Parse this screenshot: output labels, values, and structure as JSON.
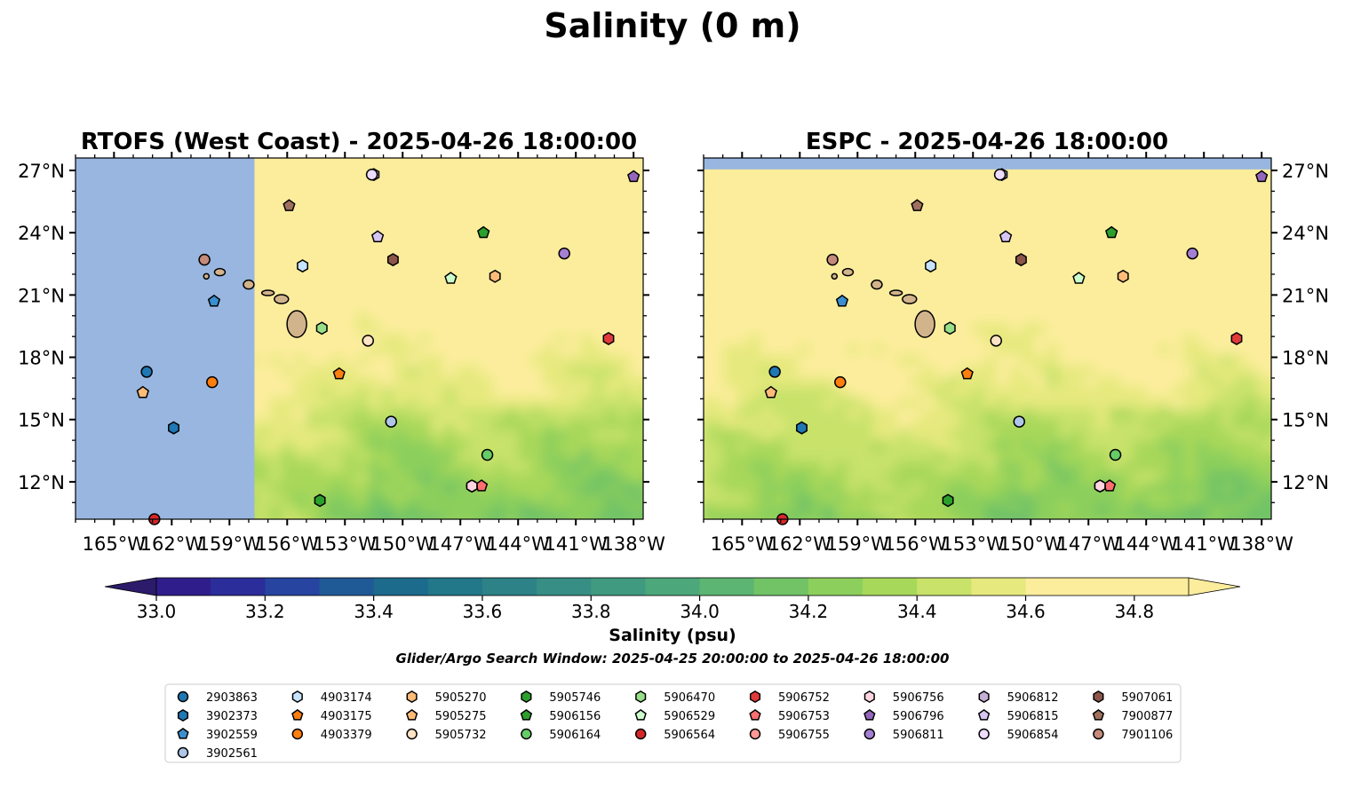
{
  "figure": {
    "title": "Salinity (0 m)",
    "search_window": "Glider/Argo Search Window: 2025-04-25 20:00:00 to 2025-04-26 18:00:00"
  },
  "colors": {
    "land": "#d2b48c",
    "nodata_fill": "#98b6e0",
    "saturated_fill": "#fced9c",
    "ramp": [
      "#2c1b6b",
      "#301d8c",
      "#2b2d9a",
      "#2744a0",
      "#1f5a96",
      "#1d6b8c",
      "#227789",
      "#2d8287",
      "#378e84",
      "#3f9a80",
      "#4ca77a",
      "#5cb572",
      "#71c366",
      "#8ccf5c",
      "#a8d85a",
      "#c8e26a",
      "#e6e97e",
      "#fced9c"
    ]
  },
  "chart_data": {
    "type": "heatmap",
    "variable": "Salinity (0 m)",
    "colorbar": {
      "label": "Salinity (psu)",
      "min": 32.9,
      "max": 34.9,
      "step": 0.1,
      "ticks": [
        "33.0",
        "33.2",
        "33.4",
        "33.6",
        "33.8",
        "34.0",
        "34.2",
        "34.4",
        "34.6",
        "34.8"
      ],
      "extend": "both"
    },
    "x_ticks": [
      "165°W",
      "162°W",
      "159°W",
      "156°W",
      "153°W",
      "150°W",
      "147°W",
      "144°W",
      "141°W",
      "138°W"
    ],
    "y_ticks": [
      "27°N",
      "24°N",
      "21°N",
      "18°N",
      "15°N",
      "12°N"
    ],
    "xlim": [
      -167,
      -137.5
    ],
    "ylim": [
      10.2,
      27.6
    ],
    "panels": [
      {
        "title": "RTOFS (West Coast) - 2025-04-26 18:00:00",
        "model": "RTOFS (West Coast)",
        "valid_time": "2025-04-26 18:00:00",
        "y_axis_side": "left",
        "domain_west_edge_lon": -157.7
      },
      {
        "title": "ESPC - 2025-04-26 18:00:00",
        "model": "ESPC",
        "valid_time": "2025-04-26 18:00:00",
        "y_axis_side": "right",
        "domain_north_edge_lat": 27.05
      }
    ],
    "islands": [
      {
        "name": "Hawaii",
        "lon": -155.5,
        "lat": 19.6
      },
      {
        "name": "Maui",
        "lon": -156.3,
        "lat": 20.8
      },
      {
        "name": "Molokai",
        "lon": -157.0,
        "lat": 21.1
      },
      {
        "name": "Oahu",
        "lon": -158.0,
        "lat": 21.5
      },
      {
        "name": "Kauai",
        "lon": -159.5,
        "lat": 22.1
      },
      {
        "name": "Niihau",
        "lon": -160.2,
        "lat": 21.9
      }
    ],
    "platforms": [
      {
        "id": "2903863",
        "marker": "circle",
        "color": "#1f77b4",
        "lon": -163.3,
        "lat": 17.3
      },
      {
        "id": "3902373",
        "marker": "hexagon",
        "color": "#1f77b4",
        "lon": -161.9,
        "lat": 14.6
      },
      {
        "id": "3902559",
        "marker": "pentagon",
        "color": "#3b8fd0",
        "lon": -159.8,
        "lat": 20.7
      },
      {
        "id": "3902561",
        "marker": "circle",
        "color": "#aec7e8",
        "lon": -150.6,
        "lat": 14.9
      },
      {
        "id": "4903174",
        "marker": "hexagon",
        "color": "#c6e4ff",
        "lon": -155.2,
        "lat": 22.4
      },
      {
        "id": "4903175",
        "marker": "pentagon",
        "color": "#ff7f0e",
        "lon": -153.3,
        "lat": 17.2
      },
      {
        "id": "4903379",
        "marker": "circle",
        "color": "#ff7f0e",
        "lon": -159.9,
        "lat": 16.8
      },
      {
        "id": "5905270",
        "marker": "hexagon",
        "color": "#ffbb78",
        "lon": -145.2,
        "lat": 21.9
      },
      {
        "id": "5905275",
        "marker": "pentagon",
        "color": "#ffbb78",
        "lon": -163.5,
        "lat": 16.3
      },
      {
        "id": "5905732",
        "marker": "circle",
        "color": "#ffe4c4",
        "lon": -151.8,
        "lat": 18.8
      },
      {
        "id": "5905746",
        "marker": "hexagon",
        "color": "#2ca02c",
        "lon": -154.3,
        "lat": 11.1
      },
      {
        "id": "5906156",
        "marker": "pentagon",
        "color": "#2ca02c",
        "lon": -145.8,
        "lat": 24.0
      },
      {
        "id": "5906164",
        "marker": "circle",
        "color": "#66cc66",
        "lon": -145.6,
        "lat": 13.3
      },
      {
        "id": "5906470",
        "marker": "hexagon",
        "color": "#98df8a",
        "lon": -154.2,
        "lat": 19.4
      },
      {
        "id": "5906529",
        "marker": "pentagon",
        "color": "#ccffcc",
        "lon": -147.5,
        "lat": 21.8
      },
      {
        "id": "5906564",
        "marker": "circle",
        "color": "#d62728",
        "lon": -162.9,
        "lat": 10.2
      },
      {
        "id": "5906752",
        "marker": "hexagon",
        "color": "#e03a3a",
        "lon": -139.3,
        "lat": 18.9
      },
      {
        "id": "5906753",
        "marker": "pentagon",
        "color": "#ff6f6f",
        "lon": -145.9,
        "lat": 11.8
      },
      {
        "id": "5906755",
        "marker": "circle",
        "color": "#ff9896",
        "lon": -146.4,
        "lat": 11.8
      },
      {
        "id": "5906756",
        "marker": "hexagon",
        "color": "#ffd6e0",
        "lon": -146.4,
        "lat": 11.8
      },
      {
        "id": "5906796",
        "marker": "pentagon",
        "color": "#9467bd",
        "lon": -138.0,
        "lat": 26.7
      },
      {
        "id": "5906811",
        "marker": "circle",
        "color": "#a57fd4",
        "lon": -141.6,
        "lat": 23.0
      },
      {
        "id": "5906812",
        "marker": "hexagon",
        "color": "#c5b0d5",
        "lon": -151.5,
        "lat": 26.8
      },
      {
        "id": "5906815",
        "marker": "pentagon",
        "color": "#d6c5f2",
        "lon": -151.3,
        "lat": 23.8
      },
      {
        "id": "5906854",
        "marker": "circle",
        "color": "#eedcff",
        "lon": -151.6,
        "lat": 26.8
      },
      {
        "id": "5907061",
        "marker": "hexagon",
        "color": "#8c564b",
        "lon": -150.5,
        "lat": 22.7
      },
      {
        "id": "7900877",
        "marker": "pentagon",
        "color": "#a0705e",
        "lon": -155.9,
        "lat": 25.3
      },
      {
        "id": "7901106",
        "marker": "circle",
        "color": "#c48a7a",
        "lon": -160.3,
        "lat": 22.7
      }
    ]
  }
}
